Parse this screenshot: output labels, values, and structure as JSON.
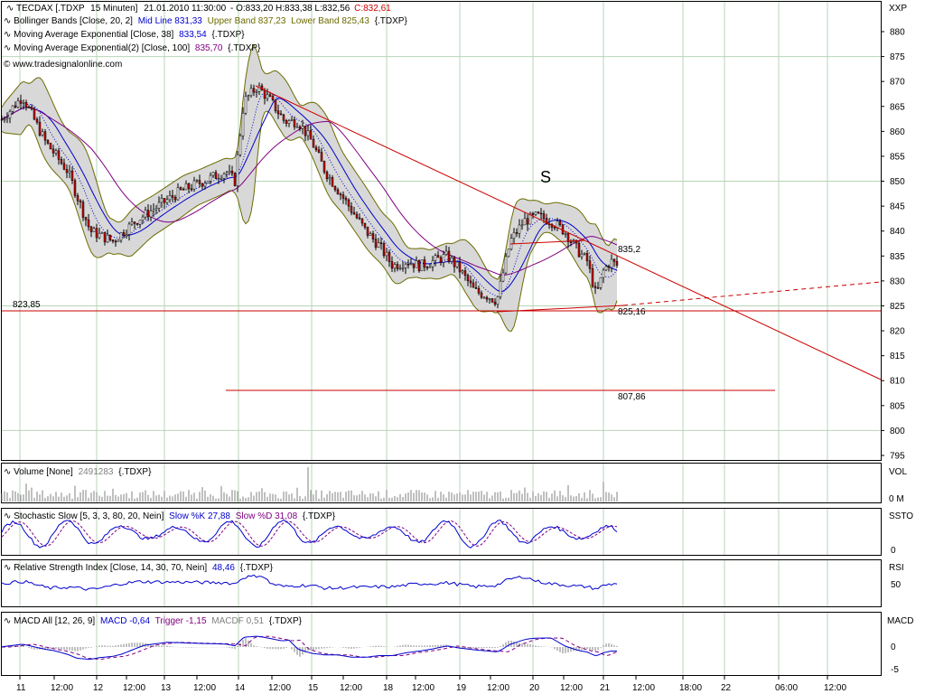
{
  "chart_data": {
    "type": "candlestick",
    "instrument_info": {
      "label": "TECDAX [.TDXP",
      "interval": "15 Minuten]",
      "datetime": "21.01.2010 11:30:00",
      "ohlc": "- O:833,20 H:833,38 L:832,56",
      "close": "C:832,61"
    },
    "website": "www.tradesignalonline.com",
    "axis_symbol": "XXP",
    "indicators": [
      {
        "name": "Bollinger Bands [Close, 20, 2]",
        "mid": "Mid Line 831,33",
        "upper": "Upper Band 837,23",
        "lower": "Lower Band 825,43",
        "src": "{.TDXP}",
        "color_mid": "#0000cc",
        "color_band": "#6b6b00"
      },
      {
        "name": "Moving Average Exponential [Close, 38]",
        "value": "833,54",
        "src": "{.TDXP}",
        "color": "#0000cc"
      },
      {
        "name": "Moving Average Exponential(2) [Close, 100]",
        "value": "835,70",
        "src": "{.TDXP}",
        "color": "#800080"
      }
    ],
    "y_ticks": [
      "880",
      "875",
      "870",
      "865",
      "860",
      "855",
      "850",
      "845",
      "840",
      "835",
      "830",
      "825",
      "820",
      "815",
      "810",
      "805",
      "800",
      "795"
    ],
    "ylim": [
      795,
      880
    ],
    "x_ticks": [
      "11",
      "12:00",
      "12",
      "12:00",
      "13",
      "12:00",
      "14",
      "12:00",
      "15",
      "12:00",
      "18",
      "12:00",
      "19",
      "12:00",
      "20",
      "12:00",
      "21",
      "12:00",
      "18:00",
      "22",
      "06:00",
      "12:00"
    ],
    "price_path": [
      [
        0,
        862
      ],
      [
        25,
        867
      ],
      [
        50,
        858
      ],
      [
        75,
        852
      ],
      [
        100,
        840
      ],
      [
        125,
        838
      ],
      [
        150,
        842
      ],
      [
        175,
        845
      ],
      [
        200,
        848
      ],
      [
        225,
        850
      ],
      [
        250,
        852
      ],
      [
        260,
        850
      ],
      [
        270,
        866
      ],
      [
        285,
        869
      ],
      [
        300,
        866
      ],
      [
        315,
        862
      ],
      [
        330,
        862
      ],
      [
        345,
        858
      ],
      [
        360,
        852
      ],
      [
        375,
        848
      ],
      [
        390,
        844
      ],
      [
        405,
        840
      ],
      [
        420,
        837
      ],
      [
        435,
        833
      ],
      [
        450,
        834
      ],
      [
        465,
        833
      ],
      [
        480,
        834
      ],
      [
        495,
        835
      ],
      [
        510,
        832
      ],
      [
        525,
        828
      ],
      [
        540,
        827
      ],
      [
        550,
        826
      ],
      [
        565,
        838
      ],
      [
        580,
        842
      ],
      [
        595,
        843
      ],
      [
        610,
        842
      ],
      [
        625,
        840
      ],
      [
        640,
        836
      ],
      [
        650,
        834
      ],
      [
        660,
        827
      ],
      [
        668,
        832
      ],
      [
        676,
        834
      ],
      [
        684,
        833
      ]
    ],
    "annotations": {
      "s_label": "S",
      "level_left": "823,85",
      "level_right": "825,16",
      "target": "807,86",
      "trend_value": "835,2"
    },
    "panels": {
      "volume": {
        "title": "Volume [None]",
        "value": "2491283",
        "src": "{.TDXP}",
        "axis": "VOL",
        "ticks": [
          "0 M"
        ]
      },
      "stochastic": {
        "title": "Stochastic Slow [5, 3, 3, 80, 20, Nein]",
        "k": "Slow %K 27,88",
        "d": "Slow %D 31,08",
        "src": "{.TDXP}",
        "axis": "SSTO",
        "ticks": [
          "0"
        ]
      },
      "rsi": {
        "title": "Relative Strength Index [Close, 14, 30, 70, Nein]",
        "value": "48,46",
        "src": "{.TDXP}",
        "axis": "RSI",
        "ticks": [
          "50"
        ]
      },
      "macd": {
        "title": "MACD All [12, 26, 9]",
        "macd": "MACD -0,64",
        "trigger": "Trigger -1,15",
        "macdf": "MACDF 0,51",
        "src": "{.TDXP}",
        "axis": "MACD",
        "ticks": [
          "0",
          "-5"
        ]
      }
    }
  }
}
